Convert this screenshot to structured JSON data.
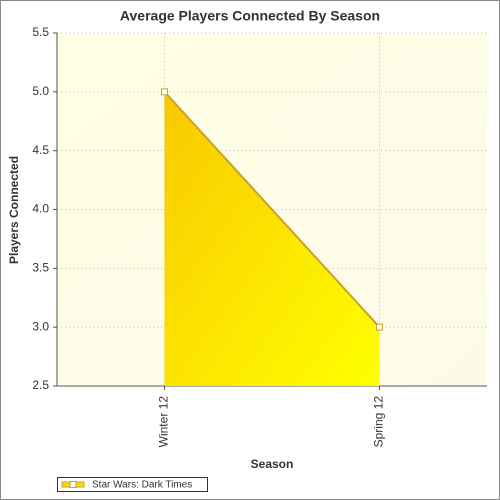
{
  "chart_data": {
    "type": "area",
    "title": "Average Players Connected By Season",
    "categories": [
      "Winter 12",
      "Spring 12"
    ],
    "series": [
      {
        "name": "Star Wars: Dark Times",
        "color": "#ffd800",
        "line_color": "#c9a227",
        "values": [
          5,
          3
        ]
      }
    ],
    "x_label": "Season",
    "y_label": "Players Connected",
    "ylim": [
      2.5,
      5.5
    ],
    "yticks": [
      2.5,
      {
        "value": 3,
        "label": "3.0"
      },
      3.5,
      {
        "value": 4,
        "label": "4.0"
      },
      4.5,
      {
        "value": 5,
        "label": "5.0"
      },
      5.5
    ],
    "grid": true,
    "legend": "bottom-left"
  }
}
